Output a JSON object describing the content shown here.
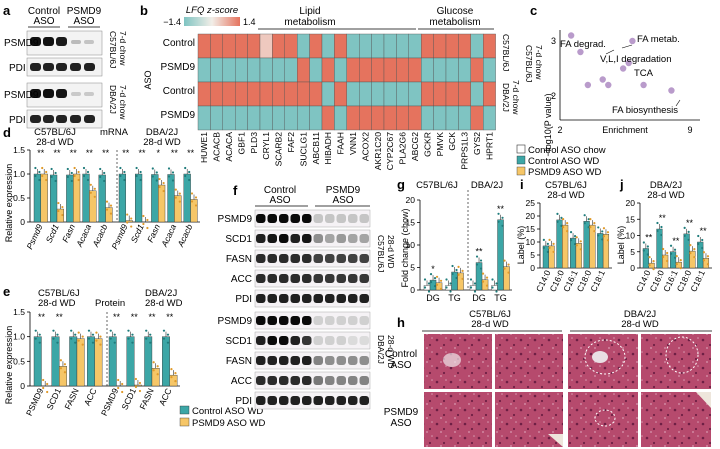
{
  "panels": {
    "a": "a",
    "b": "b",
    "c": "c",
    "d": "d",
    "e": "e",
    "f": "f",
    "g": "g",
    "h": "h",
    "i": "i",
    "j": "j"
  },
  "a": {
    "col1": "Control",
    "col1b": "ASO",
    "col2": "PSMD9",
    "col2b": "ASO",
    "row_psmd9": "PSMD9",
    "row_pdi": "PDI",
    "strain1a": "C57BL/6J",
    "strain1b": "7-d chow",
    "strain2a": "DBA/2J",
    "strain2b": "7-d chow"
  },
  "b": {
    "scale_title": "LFQ z-score",
    "scale_min": "−1.4",
    "scale_max": "1.4",
    "group1": "Lipid",
    "group1b": "metabolism",
    "group2": "Glucose",
    "group2b": "metabolism",
    "rows": [
      "Control",
      "PSMD9",
      "Control",
      "PSMD9"
    ],
    "row_group": "ASO",
    "right1": "C57BL/6J",
    "right2": "DBA/2J",
    "right3": "7-d chow",
    "genes": [
      "HUWE1",
      "ACACB",
      "ACACA",
      "GBF1",
      "PLD3",
      "CRYL1",
      "SCARB2",
      "FAF2",
      "SUCLG1",
      "ABCB11",
      "HIBADH",
      "FAAH",
      "VNN1",
      "ACOX2",
      "AKR1C20",
      "CYP2C67",
      "PLA2G6",
      "ABCG2",
      "GCKR",
      "PMVK",
      "GCK",
      "PRPS1L3",
      "GYS2",
      "HPRT1"
    ],
    "cells": [
      [
        1,
        1,
        1,
        1,
        1,
        0.3,
        1,
        1,
        -1,
        1,
        -1,
        1,
        -1,
        -1,
        -1,
        -1,
        -1,
        -1,
        1,
        1,
        1,
        1,
        -1,
        1
      ],
      [
        -1,
        -1,
        -1,
        -1,
        -1,
        -1,
        -1,
        -1,
        1,
        -1,
        1,
        -1,
        1,
        1,
        1,
        1,
        1,
        1,
        -1,
        -1,
        -1,
        -1,
        1,
        -1
      ],
      [
        1,
        1,
        1,
        1,
        1,
        1,
        1,
        1,
        1,
        1,
        -1,
        1,
        -1,
        -1,
        -1,
        -1,
        -1,
        -1,
        1,
        1,
        1,
        1,
        -1,
        1
      ],
      [
        -1,
        -1,
        -1,
        -1,
        -1,
        -1,
        -1,
        -1,
        -1,
        -1,
        1,
        -1,
        1,
        1,
        1,
        1,
        1,
        1,
        -1,
        -1,
        -1,
        -1,
        1,
        -1
      ]
    ]
  },
  "c": {
    "ylabel": "−log10(P value)",
    "xlabel": "Enrichment",
    "side1": "C57BL/6J",
    "side2": "DBA/2J",
    "side3": "7-d chow",
    "xticks": [
      "2",
      "9"
    ],
    "yticks": [
      "2",
      "3"
    ],
    "labels": [
      "FA degrad.",
      "FA metab.",
      "V,L,I degradation",
      "TCA",
      "FA biosynthesis"
    ],
    "points": [
      {
        "x": 2.6,
        "y": 3.1
      },
      {
        "x": 3.1,
        "y": 2.8
      },
      {
        "x": 3.5,
        "y": 2.2
      },
      {
        "x": 4.3,
        "y": 2.3
      },
      {
        "x": 5.4,
        "y": 2.5
      },
      {
        "x": 5.9,
        "y": 3.0
      },
      {
        "x": 5.7,
        "y": 2.6
      },
      {
        "x": 6.5,
        "y": 2.2
      },
      {
        "x": 8.0,
        "y": 2.1
      },
      {
        "x": 4.6,
        "y": 2.2
      }
    ]
  },
  "d": {
    "title1": "C57BL/6J",
    "title1b": "28-d WD",
    "mid": "mRNA",
    "title2": "DBA/2J",
    "title2b": "28-d WD",
    "ylabel": "Relative expression",
    "yticks": [
      "0",
      "0.5",
      "1.0",
      "1.5"
    ],
    "genes": [
      "Psmd9",
      "Scd1",
      "Fasn",
      "Acaca",
      "Acacb",
      "Psmd9",
      "Scd1",
      "Fasn",
      "Acaca",
      "Acacb"
    ],
    "teal": [
      1.0,
      0.98,
      0.98,
      1.0,
      0.98,
      1.0,
      1.0,
      0.99,
      0.99,
      1.0
    ],
    "yellow": [
      1.0,
      0.27,
      1.0,
      0.65,
      0.3,
      0.03,
      0.0,
      0.77,
      0.55,
      0.47
    ],
    "stars": [
      "**",
      "**",
      "**",
      "**",
      "**",
      "**",
      "**",
      "*",
      "**",
      "**"
    ]
  },
  "e": {
    "title1": "C57BL/6J",
    "title1b": "28-d WD",
    "mid": "Protein",
    "title2": "DBA/2J",
    "title2b": "28-d WD",
    "ylabel": "Relative expression",
    "yticks": [
      "0",
      "0.5",
      "1.0",
      "1.5"
    ],
    "genes": [
      "PSMD9",
      "SCD1",
      "FASN",
      "ACC",
      "PSMD9",
      "SCD1",
      "FASN",
      "ACC"
    ],
    "teal": [
      1.0,
      1.0,
      1.0,
      1.0,
      1.0,
      1.0,
      1.0,
      1.0
    ],
    "yellow": [
      0.0,
      0.4,
      0.96,
      0.96,
      0.0,
      0.02,
      0.36,
      0.22
    ],
    "stars": [
      "**",
      "**",
      "",
      "",
      "**",
      "**",
      "**",
      "**"
    ],
    "legend1": "Control ASO WD",
    "legend2": "PSMD9 ASO WD"
  },
  "f": {
    "col1": "Control",
    "col1b": "ASO",
    "col2": "PSMD9",
    "col2b": "ASO",
    "rows": [
      "PSMD9",
      "SCD1",
      "FASN",
      "ACC",
      "PDI"
    ],
    "side1a": "C57BL/6J",
    "side1b": "28-d WD",
    "side2a": "DBA/2J",
    "side2b": "28-d WD"
  },
  "g": {
    "title1": "C57BL/6J",
    "title2": "DBA/2J",
    "ylabel": "Fold change (chow)",
    "yticks": [
      "0",
      "5",
      "10",
      "15",
      "20"
    ],
    "cats": [
      "DG",
      "TG",
      "DG",
      "TG"
    ],
    "chow": [
      1.0,
      1.0,
      1.0,
      1.0
    ],
    "ctrl": [
      2.2,
      4.0,
      6.1,
      15.6
    ],
    "psmd9": [
      1.6,
      3.8,
      2.3,
      5.2
    ],
    "stars": [
      "*",
      "",
      "**",
      "**"
    ],
    "legend1": "Control ASO chow",
    "legend2": "Control ASO WD",
    "legend3": "PSMD9 ASO WD"
  },
  "i": {
    "title1": "C57BL/6J",
    "title1b": "28-d WD",
    "ylabel": "Label (%)",
    "yticks": [
      "0",
      "5",
      "10",
      "15",
      "20",
      "25"
    ],
    "cats": [
      "C14:0",
      "C16:0",
      "C16:1",
      "C18:0",
      "C18:1"
    ],
    "teal": [
      8.5,
      18.5,
      11.5,
      18.0,
      13.3
    ],
    "yellow": [
      8.5,
      16.5,
      9.5,
      16.5,
      13.0
    ]
  },
  "j": {
    "title1": "DBA/2J",
    "title1b": "28-d WD",
    "ylabel": "Label (%)",
    "yticks": [
      "0",
      "5",
      "10",
      "15",
      "20"
    ],
    "cats": [
      "C14:0",
      "C16:0",
      "C16:1",
      "C18:0",
      "C18:1"
    ],
    "teal": [
      6.0,
      12.0,
      5.0,
      10.5,
      8.0
    ],
    "yellow": [
      1.5,
      4.0,
      1.8,
      5.2,
      3.0
    ],
    "stars": [
      "**",
      "**",
      "**",
      "**",
      "**"
    ]
  },
  "h": {
    "title1": "C57BL/6J",
    "title1b": "28-d WD",
    "title2": "DBA/2J",
    "title2b": "28-d WD",
    "row1": "Control",
    "row1b": "ASO",
    "row2": "PSMD9",
    "row2b": "ASO"
  },
  "colors": {
    "teal": "#3ca6a6",
    "yellow": "#f6c667",
    "heat_hi": "#e5735e",
    "heat_lo": "#7fc4c2",
    "purple": "#b99bcb",
    "white": "#ffffff"
  }
}
